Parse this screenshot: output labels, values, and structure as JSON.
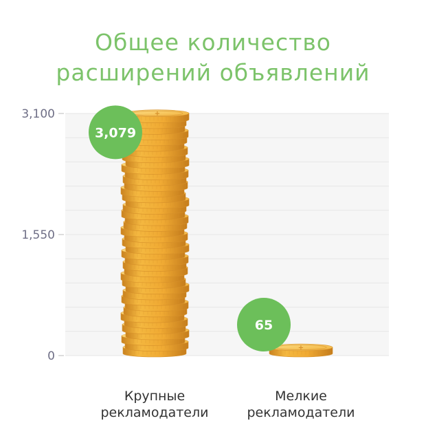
{
  "chart_data": {
    "type": "bar",
    "title": [
      "Общее количество",
      "расширений объявлений"
    ],
    "categories": [
      [
        "Крупные",
        "рекламодатели"
      ],
      [
        "Мелкие",
        "рекламодатели"
      ]
    ],
    "values": [
      3079,
      65
    ],
    "value_labels": [
      "3,079",
      "65"
    ],
    "yticks": [
      0,
      1550,
      3100
    ],
    "ytick_labels": [
      "0",
      "1,550",
      "3,100"
    ],
    "ylim": [
      0,
      3100
    ],
    "grid": true,
    "colors": {
      "title": "#7cc36a",
      "badge": "#6cbf5a",
      "coin": "#f2b13a",
      "coin_dark": "#d6902a",
      "coin_light": "#fcd57a",
      "axis_text": "#6f6f86",
      "grid": "#e6e6e6",
      "plot_bg": "#f6f6f6",
      "label": "#333333"
    }
  }
}
